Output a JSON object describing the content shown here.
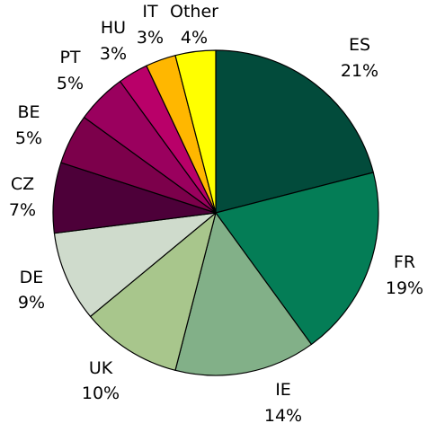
{
  "chart_data": {
    "type": "pie",
    "title": "",
    "start_angle_deg": 0,
    "direction": "clockwise",
    "slices": [
      {
        "name": "ES",
        "label": "21%",
        "value": 21,
        "color": "#024b3b"
      },
      {
        "name": "FR",
        "label": "19%",
        "value": 19,
        "color": "#047d56"
      },
      {
        "name": "IE",
        "label": "14%",
        "value": 14,
        "color": "#82b088"
      },
      {
        "name": "UK",
        "label": "10%",
        "value": 10,
        "color": "#a8c68c"
      },
      {
        "name": "DE",
        "label": "9%",
        "value": 9,
        "color": "#cfdbcc"
      },
      {
        "name": "CZ",
        "label": "7%",
        "value": 7,
        "color": "#4d0039"
      },
      {
        "name": "BE",
        "label": "5%",
        "value": 5,
        "color": "#7c004b"
      },
      {
        "name": "PT",
        "label": "5%",
        "value": 5,
        "color": "#9a005e"
      },
      {
        "name": "HU",
        "label": "3%",
        "value": 3,
        "color": "#b90069"
      },
      {
        "name": "IT",
        "label": "3%",
        "value": 3,
        "color": "#ffb700"
      },
      {
        "name": "Other",
        "label": "4%",
        "value": 4,
        "color": "#ffff00"
      }
    ]
  }
}
